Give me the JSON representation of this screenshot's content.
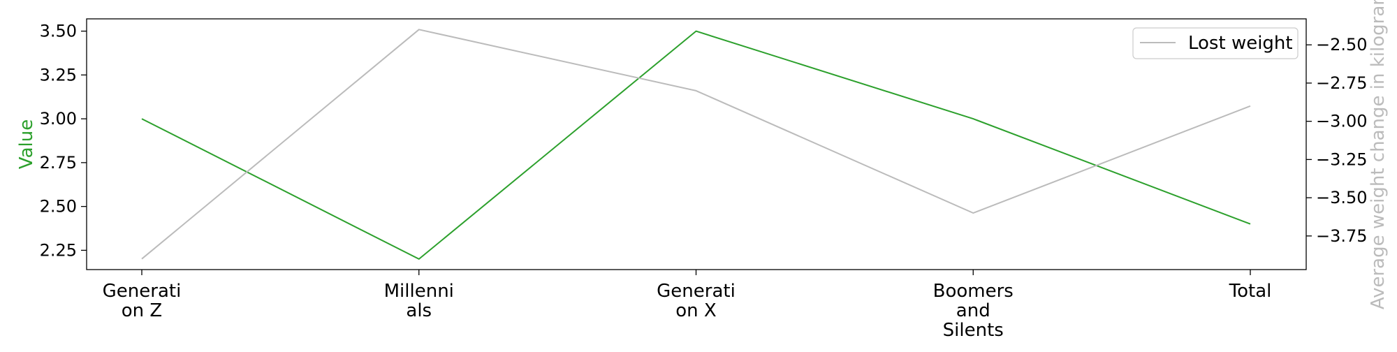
{
  "chart_data": {
    "type": "line",
    "categories": [
      "Generation Z",
      "Millennials",
      "Generation X",
      "Boomers and Silents",
      "Total"
    ],
    "category_labels": [
      [
        "Generati",
        "on Z"
      ],
      [
        "Millenni",
        "als"
      ],
      [
        "Generati",
        "on X"
      ],
      [
        "Boomers",
        "and",
        "Silents"
      ],
      [
        "Total"
      ]
    ],
    "series": [
      {
        "values": [
          3.0,
          2.2,
          3.5,
          3.0,
          2.4
        ],
        "axis": "left",
        "color": "#2ca02c"
      },
      {
        "name": "Lost weight",
        "values": [
          -3.9,
          -2.4,
          -2.8,
          -3.6,
          -2.9
        ],
        "axis": "right",
        "color": "#bbbbbb"
      }
    ],
    "ylabel": "Value",
    "ylabel_color": "#2ca02c",
    "ylim": [
      2.14,
      3.57
    ],
    "yticks": [
      "2.25",
      "2.50",
      "2.75",
      "3.00",
      "3.25",
      "3.50"
    ],
    "y2label": "Average weight change in kilograms",
    "y2label_color": "#bbbbbb",
    "y2lim": [
      -3.97,
      -2.33
    ],
    "y2ticks": [
      "−2.50",
      "−2.75",
      "−3.00",
      "−3.25",
      "−3.50",
      "−3.75"
    ],
    "legend": {
      "placement": "top-right",
      "entries": [
        "Lost weight"
      ]
    },
    "grid": false
  }
}
